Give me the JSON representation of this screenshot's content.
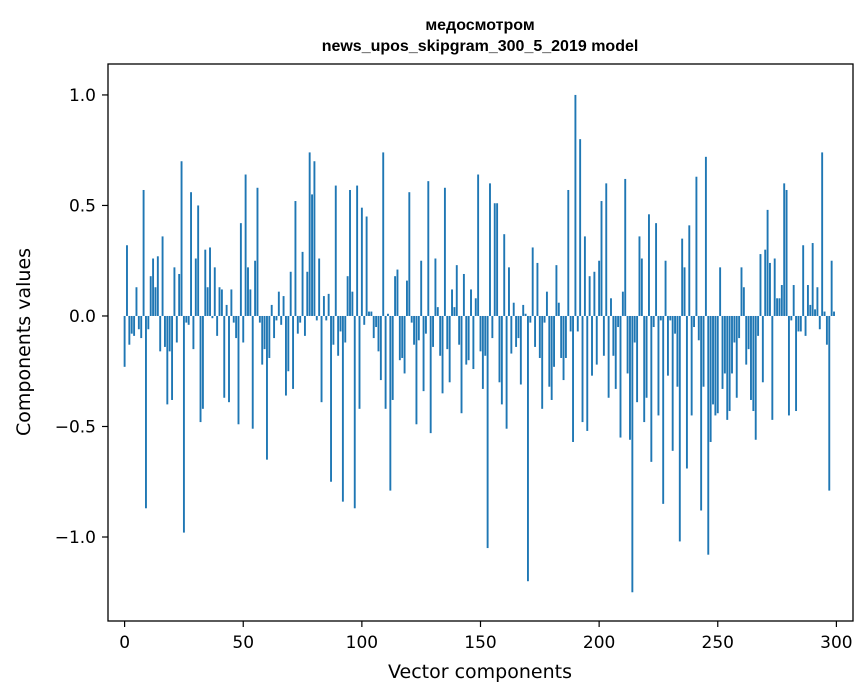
{
  "chart_data": {
    "type": "bar",
    "title": "медосмотром",
    "subtitle": "news_upos_skipgram_300_5_2019 model",
    "xlabel": "Vector components",
    "ylabel": "Components values",
    "xlim": [
      -7,
      307
    ],
    "ylim": [
      -1.38,
      1.14
    ],
    "x_ticks": [
      0,
      50,
      100,
      150,
      200,
      250,
      300
    ],
    "x_tick_labels": [
      "0",
      "50",
      "100",
      "150",
      "200",
      "250",
      "300"
    ],
    "y_ticks": [
      -1.0,
      -0.5,
      0.0,
      0.5,
      1.0
    ],
    "y_tick_labels": [
      "−1.0",
      "−0.5",
      "0.0",
      "0.5",
      "1.0"
    ],
    "grid": false,
    "legend": "none",
    "bar_color": "#1f77b4",
    "values": [
      -0.23,
      0.32,
      -0.13,
      -0.08,
      -0.09,
      0.13,
      -0.06,
      -0.1,
      0.57,
      -0.87,
      -0.06,
      0.18,
      0.26,
      0.13,
      0.27,
      -0.16,
      0.36,
      -0.14,
      -0.4,
      -0.16,
      -0.38,
      0.22,
      -0.12,
      0.19,
      0.7,
      -0.98,
      -0.03,
      -0.04,
      0.56,
      -0.15,
      0.26,
      0.5,
      -0.48,
      -0.42,
      0.3,
      0.13,
      0.31,
      -0.01,
      0.22,
      -0.09,
      0.13,
      0.12,
      -0.37,
      0.05,
      -0.39,
      0.12,
      -0.03,
      -0.1,
      -0.49,
      0.42,
      -0.12,
      0.64,
      0.22,
      0.12,
      -0.51,
      0.25,
      0.58,
      -0.03,
      -0.22,
      -0.15,
      -0.65,
      -0.19,
      0.05,
      -0.1,
      -0.02,
      0.11,
      -0.04,
      0.09,
      -0.36,
      -0.25,
      0.2,
      -0.33,
      0.52,
      -0.08,
      -0.03,
      0.29,
      -0.09,
      0.2,
      0.74,
      0.55,
      0.7,
      -0.02,
      0.26,
      -0.39,
      0.09,
      -0.02,
      0.1,
      -0.75,
      -0.13,
      0.59,
      -0.18,
      -0.07,
      -0.84,
      -0.12,
      0.18,
      0.57,
      0.11,
      -0.87,
      0.59,
      -0.42,
      0.49,
      -0.04,
      0.45,
      0.02,
      0.02,
      -0.1,
      -0.05,
      -0.16,
      -0.29,
      0.74,
      -0.42,
      0.01,
      -0.79,
      -0.38,
      0.18,
      0.21,
      -0.2,
      -0.19,
      -0.26,
      0.16,
      0.56,
      -0.03,
      -0.13,
      -0.49,
      -0.11,
      0.25,
      -0.34,
      -0.08,
      0.61,
      -0.53,
      -0.14,
      0.26,
      0.04,
      -0.18,
      -0.35,
      0.58,
      -0.15,
      -0.3,
      0.12,
      0.04,
      0.23,
      -0.13,
      -0.44,
      0.19,
      -0.22,
      -0.2,
      0.12,
      -0.24,
      0.08,
      0.64,
      -0.16,
      -0.33,
      -0.18,
      -1.05,
      0.6,
      -0.1,
      0.51,
      0.51,
      -0.3,
      -0.4,
      0.37,
      -0.51,
      0.22,
      -0.17,
      0.06,
      -0.14,
      -0.1,
      -0.31,
      0.05,
      0.01,
      -1.2,
      -0.03,
      0.31,
      -0.14,
      0.24,
      -0.19,
      -0.42,
      -0.03,
      0.11,
      -0.32,
      -0.38,
      -0.23,
      0.23,
      0.06,
      -0.19,
      -0.29,
      -0.19,
      0.57,
      -0.07,
      -0.57,
      1.0,
      -0.07,
      0.8,
      -0.48,
      0.36,
      -0.52,
      0.18,
      -0.27,
      0.2,
      -0.22,
      0.25,
      0.52,
      -0.18,
      0.6,
      -0.37,
      0.08,
      -0.18,
      -0.33,
      -0.05,
      -0.55,
      0.11,
      0.62,
      -0.26,
      -0.56,
      -1.25,
      -0.12,
      -0.39,
      0.36,
      0.26,
      -0.48,
      -0.37,
      0.46,
      -0.66,
      -0.05,
      0.42,
      -0.45,
      -0.02,
      -0.85,
      0.25,
      -0.27,
      -0.02,
      -0.61,
      -0.08,
      -0.32,
      -1.02,
      0.35,
      0.22,
      -0.69,
      0.41,
      -0.45,
      -0.05,
      0.63,
      -0.11,
      -0.88,
      -0.32,
      0.72,
      -1.08,
      -0.57,
      -0.4,
      -0.45,
      -0.44,
      0.22,
      -0.33,
      -0.26,
      -0.47,
      -0.43,
      -0.26,
      -0.12,
      -0.37,
      -0.1,
      0.22,
      0.13,
      -0.22,
      -0.15,
      -0.38,
      -0.43,
      -0.56,
      -0.09,
      0.28,
      -0.3,
      0.3,
      0.48,
      0.24,
      -0.47,
      0.26,
      0.08,
      0.08,
      0.14,
      0.6,
      0.57,
      -0.45,
      -0.02,
      0.14,
      -0.43,
      -0.07,
      -0.07,
      0.32,
      -0.09,
      0.14,
      0.05,
      0.33,
      0.03,
      0.13,
      -0.06,
      0.74,
      0.02,
      -0.13,
      -0.79,
      0.25,
      0.02
    ]
  }
}
